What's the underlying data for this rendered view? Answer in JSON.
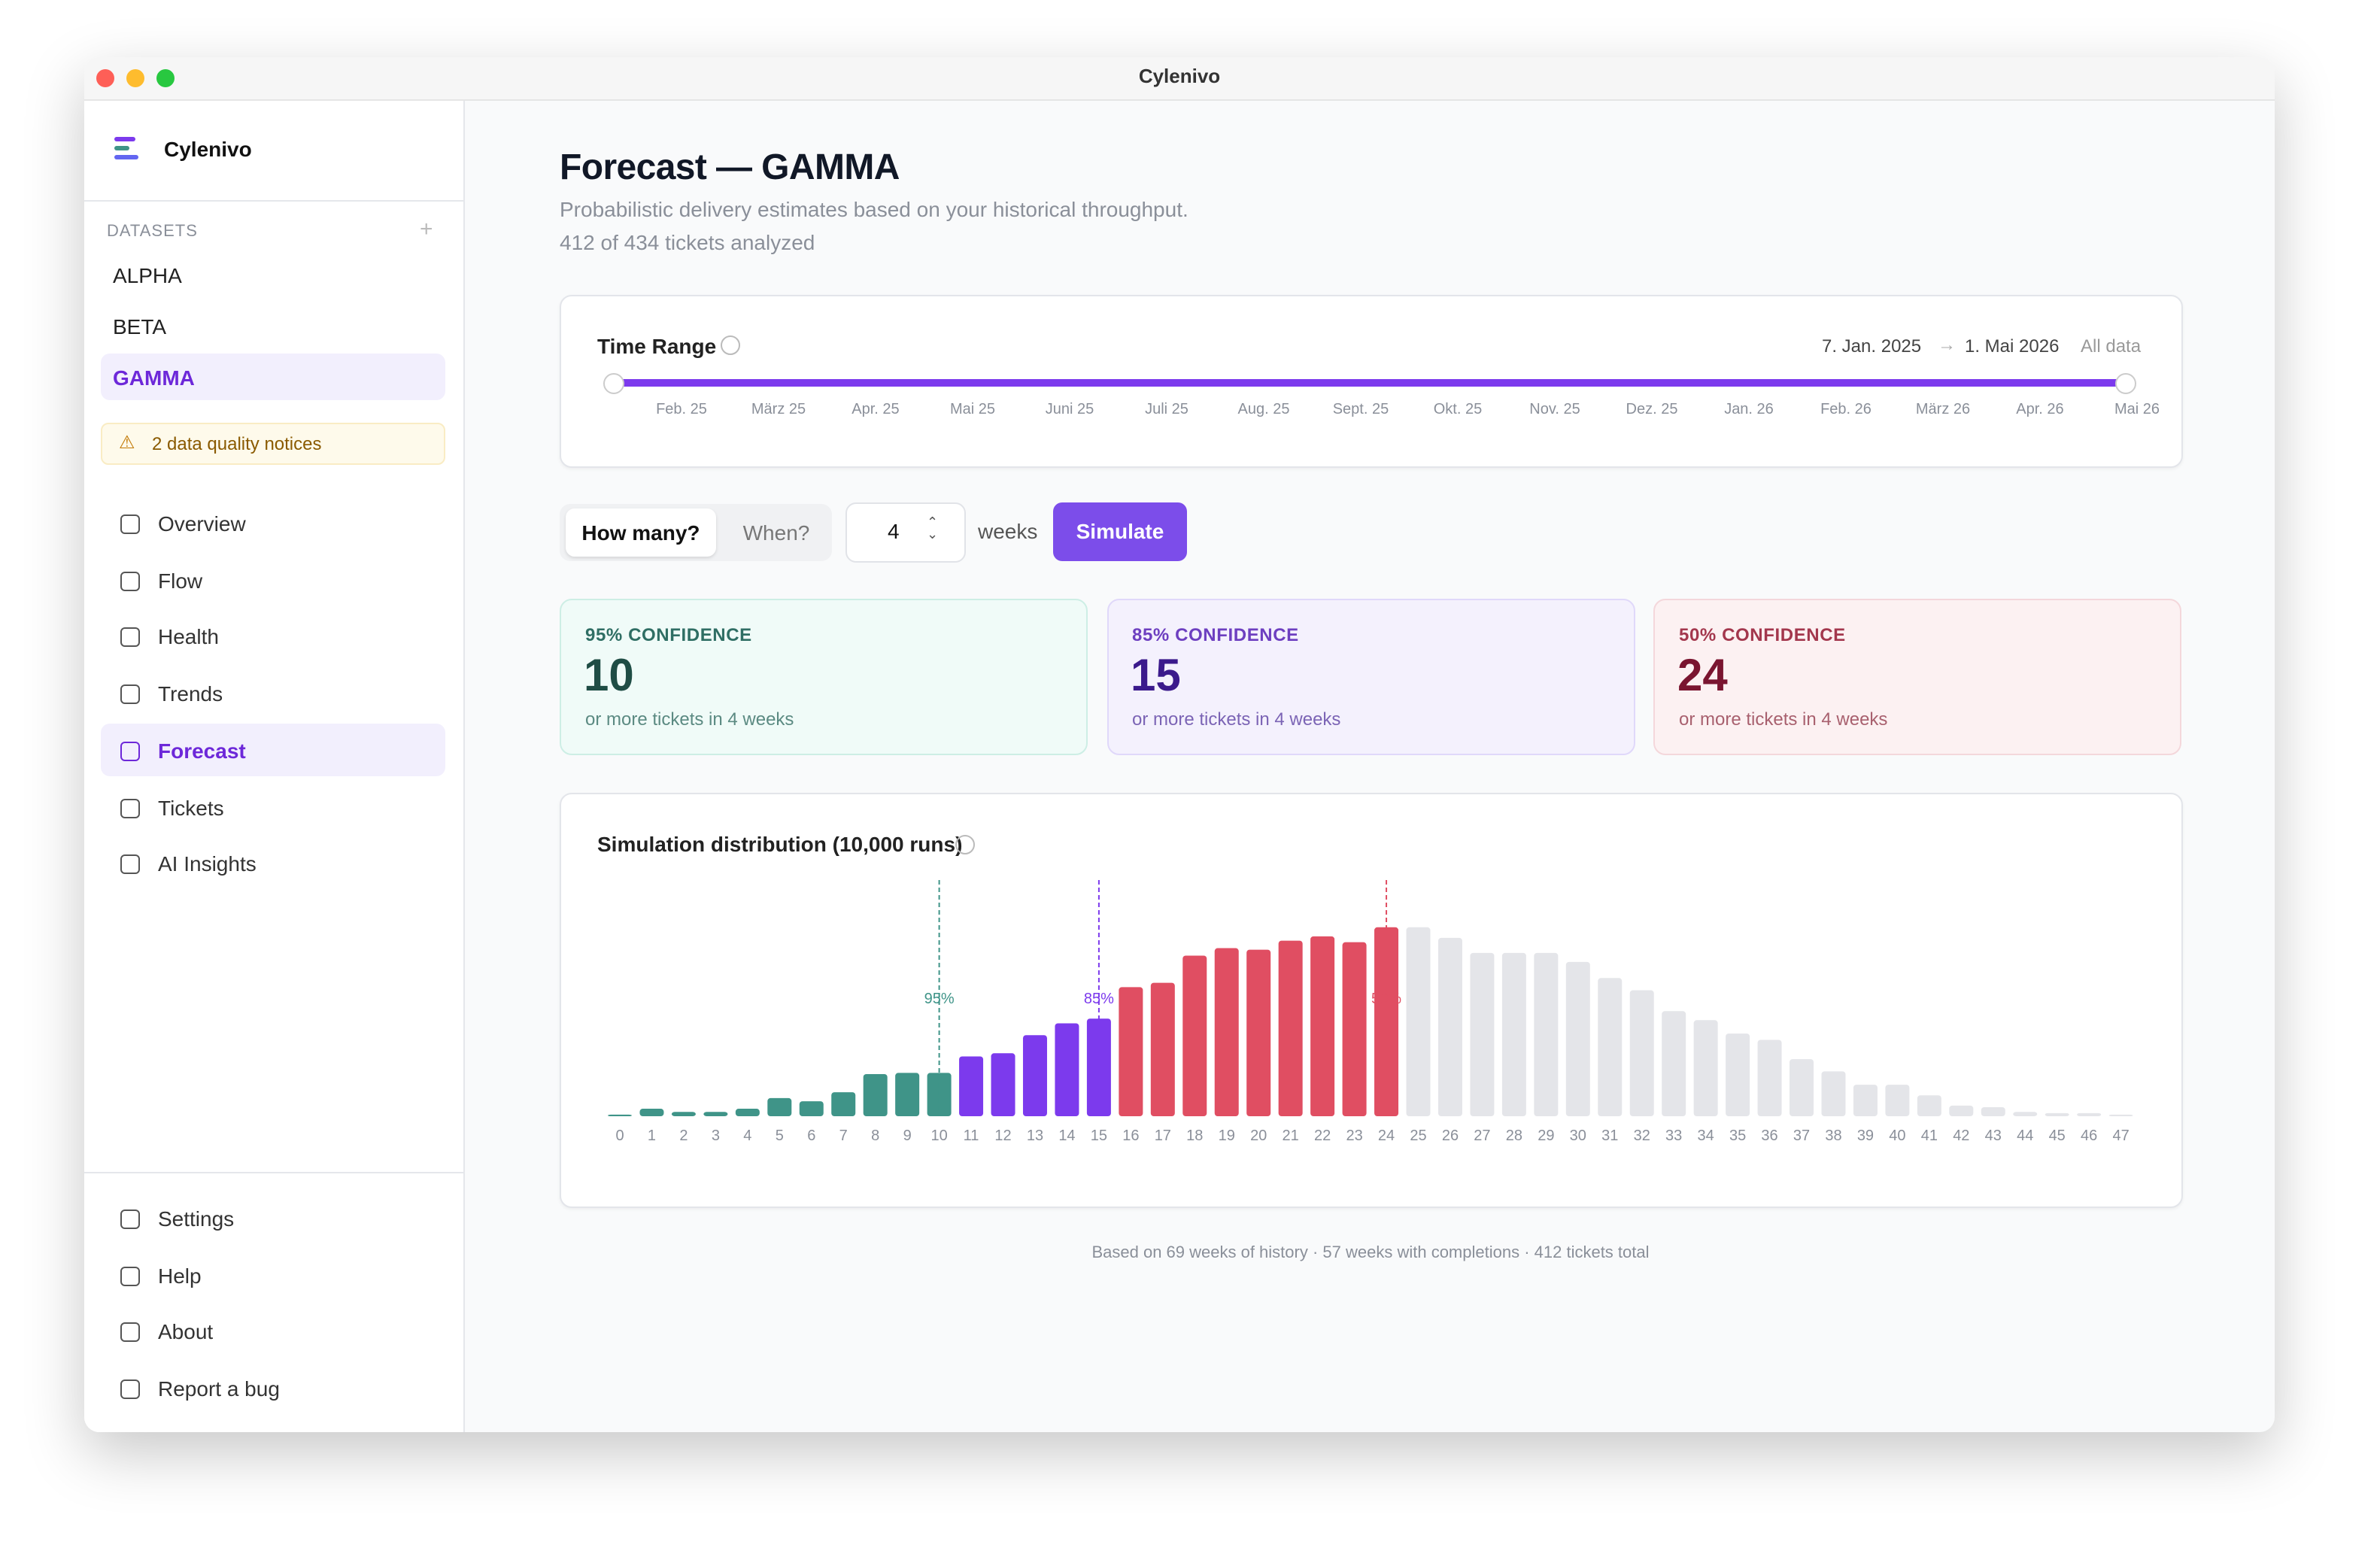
{
  "window": {
    "title": "Cylenivo"
  },
  "sidebar": {
    "app_name": "Cylenivo",
    "datasets_heading": "DATASETS",
    "datasets": [
      "ALPHA",
      "BETA",
      "GAMMA"
    ],
    "notice": "2 data quality notices",
    "nav": [
      "Overview",
      "Flow",
      "Health",
      "Trends",
      "Forecast",
      "Tickets",
      "AI Insights"
    ],
    "footer_nav": [
      "Settings",
      "Help",
      "About",
      "Report a bug"
    ]
  },
  "header": {
    "title": "Forecast — GAMMA",
    "subtitle": "Probabilistic delivery estimates based on your historical throughput.",
    "analyzed": "412 of 434 tickets analyzed"
  },
  "time_range": {
    "label": "Time Range",
    "start": "7. Jan. 2025",
    "end": "1. Mai 2026",
    "all": "All data",
    "months": [
      "Feb. 25",
      "März 25",
      "Apr. 25",
      "Mai 25",
      "Juni 25",
      "Juli 25",
      "Aug. 25",
      "Sept. 25",
      "Okt. 25",
      "Nov. 25",
      "Dez. 25",
      "Jan. 26",
      "Feb. 26",
      "März 26",
      "Apr. 26",
      "Mai 26"
    ]
  },
  "controls": {
    "modes": [
      "How many?",
      "When?"
    ],
    "weeks": 4,
    "unit": "weeks",
    "button": "Simulate"
  },
  "cards": [
    {
      "heading": "95% CONFIDENCE",
      "value": 10,
      "caption": "or more tickets in 4 weeks"
    },
    {
      "heading": "85% CONFIDENCE",
      "value": 15,
      "caption": "or more tickets in 4 weeks"
    },
    {
      "heading": "50% CONFIDENCE",
      "value": 24,
      "caption": "or more tickets in 4 weeks"
    }
  ],
  "chart_data": {
    "type": "bar",
    "title": "Simulation distribution (10,000 runs)",
    "categories": [
      "0",
      "1",
      "2",
      "3",
      "4",
      "5",
      "6",
      "7",
      "8",
      "9",
      "10",
      "11",
      "12",
      "13",
      "14",
      "15",
      "16",
      "17",
      "18",
      "19",
      "20",
      "21",
      "22",
      "23",
      "24",
      "25",
      "26",
      "27",
      "28",
      "29",
      "30",
      "31",
      "32",
      "33",
      "34",
      "35",
      "36",
      "37",
      "38",
      "39",
      "40",
      "41",
      "42",
      "43",
      "44",
      "45",
      "46",
      "47"
    ],
    "values": [
      4,
      19,
      11,
      11,
      19,
      46,
      38,
      61,
      107,
      110,
      110,
      152,
      160,
      206,
      236,
      248,
      328,
      339,
      408,
      427,
      423,
      446,
      457,
      442,
      480,
      480,
      453,
      415,
      415,
      415,
      392,
      351,
      320,
      267,
      244,
      210,
      194,
      145,
      114,
      80,
      80,
      53,
      27,
      23,
      11,
      8,
      8,
      4
    ],
    "ylim": [
      0,
      600
    ],
    "markers": [
      {
        "at": 10,
        "label": "95%",
        "color": "#3f9488"
      },
      {
        "at": 15,
        "label": "85%",
        "color": "#7c3aed"
      },
      {
        "at": 24,
        "label": "50%",
        "color": "#e04e62"
      }
    ],
    "rest_color": "#e4e5e9"
  },
  "footer": "Based on 69 weeks of history · 57 weeks with completions · 412 tickets total"
}
